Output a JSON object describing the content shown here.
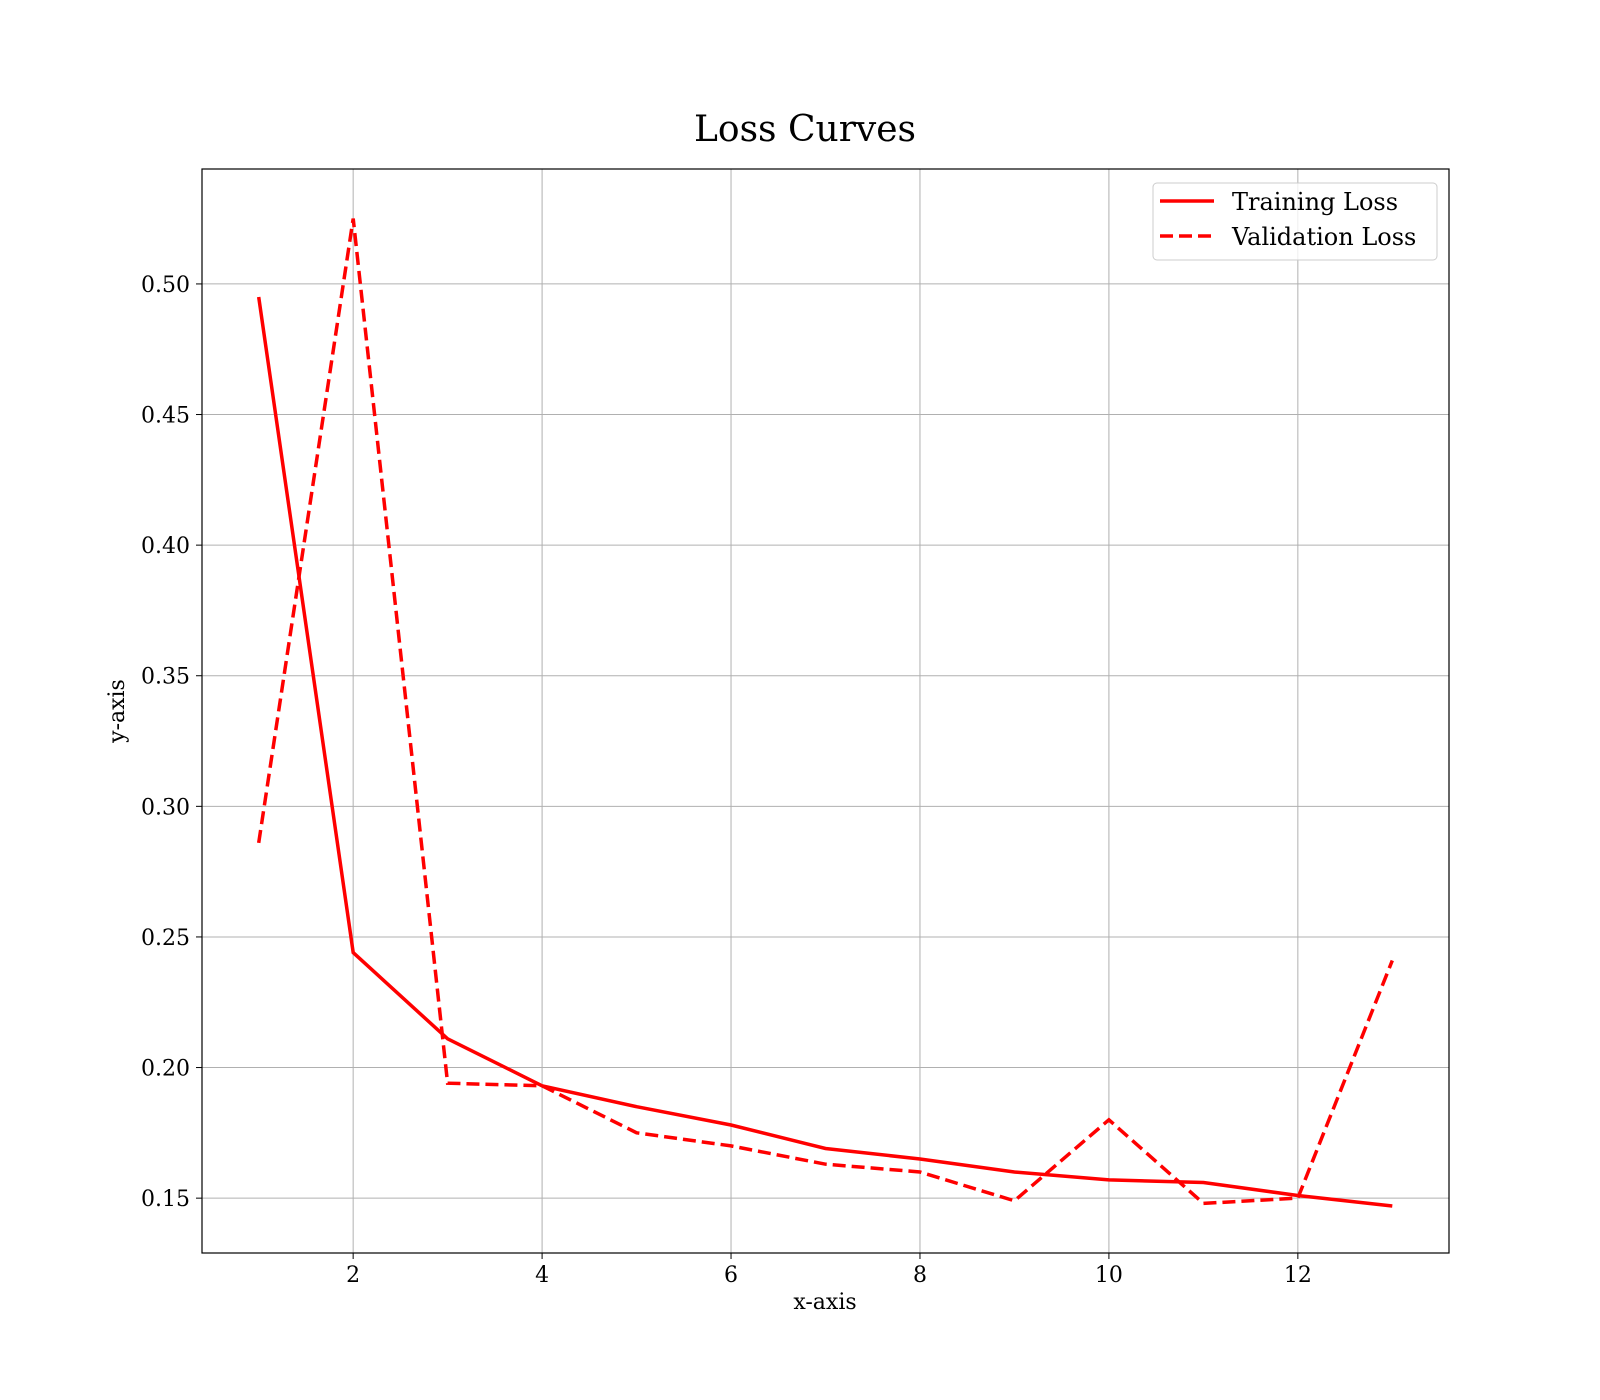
{
  "chart_data": {
    "type": "line",
    "title": "Loss Curves",
    "xlabel": "x-axis",
    "ylabel": "y-axis",
    "xlim": [
      0.4,
      13.6
    ],
    "ylim": [
      0.129,
      0.544
    ],
    "xticks": [
      2,
      4,
      6,
      8,
      10,
      12
    ],
    "yticks": [
      0.15,
      0.2,
      0.25,
      0.3,
      0.35,
      0.4,
      0.45,
      0.5
    ],
    "grid": true,
    "legend_position": "top-right",
    "x": [
      1,
      2,
      3,
      4,
      5,
      6,
      7,
      8,
      9,
      10,
      11,
      12,
      13
    ],
    "series": [
      {
        "name": "Training Loss",
        "style": "solid",
        "color": "#ff0000",
        "values": [
          0.495,
          0.244,
          0.211,
          0.193,
          0.185,
          0.178,
          0.169,
          0.165,
          0.16,
          0.157,
          0.156,
          0.151,
          0.147
        ]
      },
      {
        "name": "Validation Loss",
        "style": "dashed",
        "color": "#ff0000",
        "values": [
          0.286,
          0.525,
          0.194,
          0.193,
          0.175,
          0.17,
          0.163,
          0.16,
          0.149,
          0.18,
          0.148,
          0.15,
          0.241
        ]
      }
    ]
  }
}
